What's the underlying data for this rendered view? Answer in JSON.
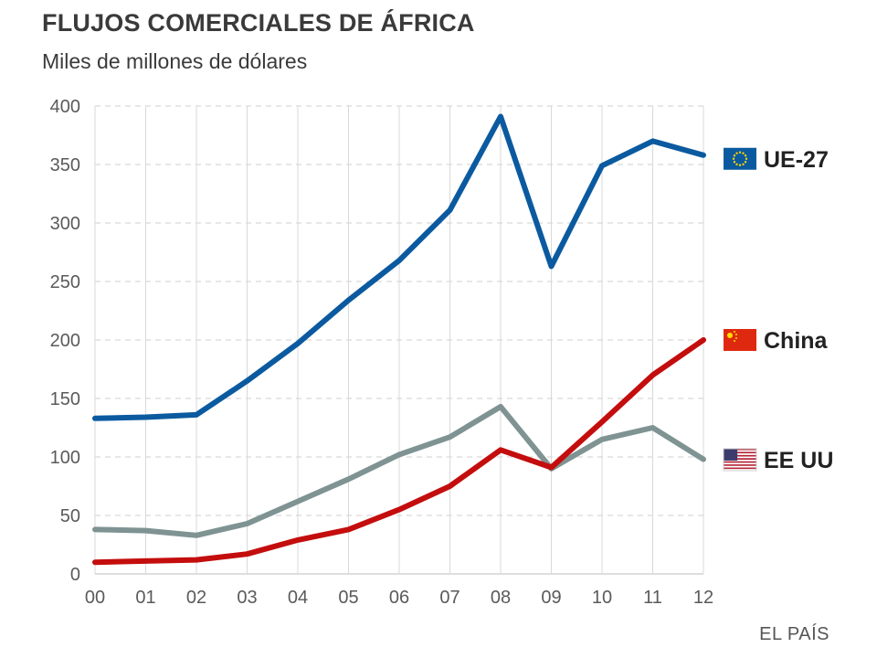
{
  "title": "FLUJOS COMERCIALES DE ÁFRICA",
  "subtitle": "Miles de millones de dólares",
  "source": "EL PAÍS",
  "chart_data": {
    "type": "line",
    "title": "FLUJOS COMERCIALES DE ÁFRICA",
    "subtitle": "Miles de millones de dólares",
    "xlabel": "",
    "ylabel": "",
    "categories": [
      "00",
      "01",
      "02",
      "03",
      "04",
      "05",
      "06",
      "07",
      "08",
      "09",
      "10",
      "11",
      "12"
    ],
    "ylim": [
      0,
      400
    ],
    "yticks": [
      0,
      50,
      100,
      150,
      200,
      250,
      300,
      350,
      400
    ],
    "grid": true,
    "legend": "right",
    "series": [
      {
        "name": "UE-27",
        "color": "#0b5aa0",
        "icon": "eu-flag-icon",
        "values": [
          133,
          134,
          136,
          165,
          197,
          234,
          268,
          311,
          391,
          263,
          349,
          370,
          358
        ]
      },
      {
        "name": "China",
        "color": "#c40d0d",
        "icon": "china-flag-icon",
        "values": [
          10,
          11,
          12,
          17,
          29,
          38,
          55,
          75,
          106,
          91,
          130,
          170,
          200
        ]
      },
      {
        "name": "EE UU",
        "color": "#7f9393",
        "icon": "usa-flag-icon",
        "values": [
          38,
          37,
          33,
          43,
          62,
          81,
          102,
          117,
          143,
          90,
          115,
          125,
          98
        ]
      }
    ]
  }
}
